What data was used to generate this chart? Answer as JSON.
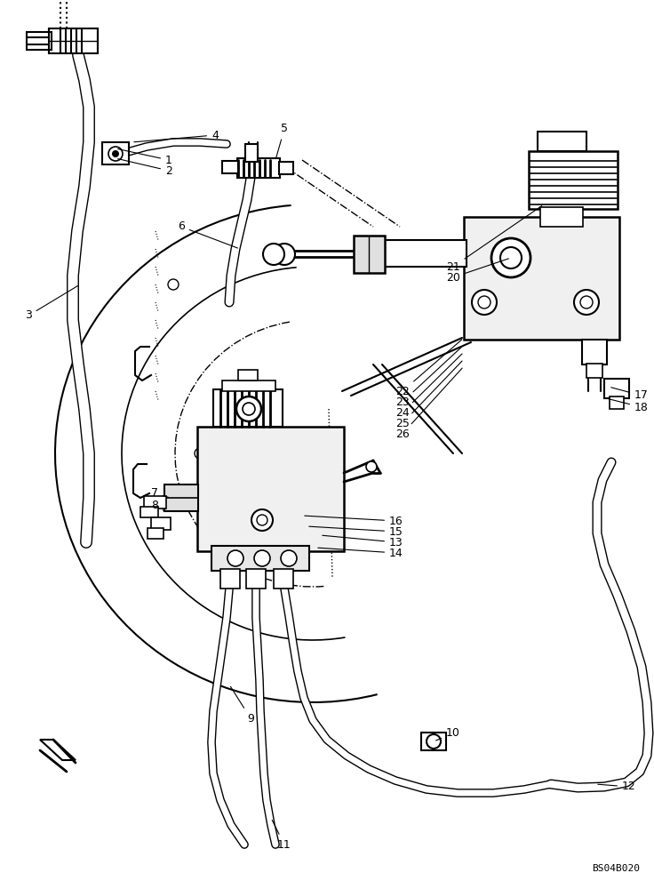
{
  "background_color": "#ffffff",
  "line_color": "#000000",
  "watermark": "BS04B020",
  "fig_w": 7.36,
  "fig_h": 10.0,
  "dpi": 100
}
